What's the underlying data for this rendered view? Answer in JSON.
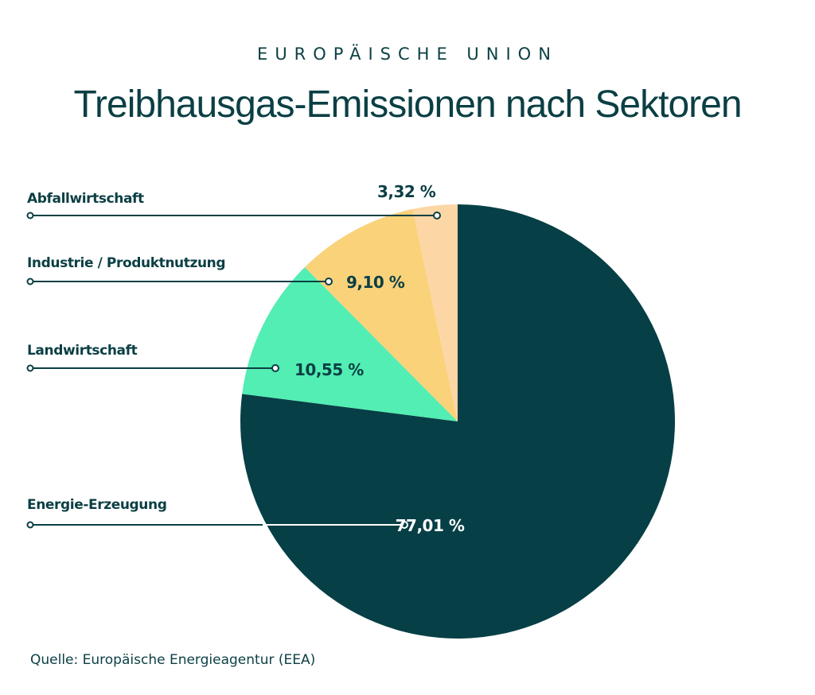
{
  "overtitle": "EUROPÄISCHE UNION",
  "title": "Treibhausgas-Emissionen nach Sektoren",
  "source": "Quelle: Europäische Energieagentur (EEA)",
  "colors": {
    "text": "#0b3f44",
    "energie": "#073f46",
    "landwirtschaft": "#52eeb3",
    "industrie": "#f9d27a",
    "abfall": "#fdd6a6"
  },
  "chart_data": {
    "type": "pie",
    "title": "Treibhausgas-Emissionen nach Sektoren",
    "slices": [
      {
        "name": "Energie-Erzeugung",
        "value": 77.01,
        "label": "77,01 %",
        "color": "#073f46",
        "label_color": "#ffffff"
      },
      {
        "name": "Landwirtschaft",
        "value": 10.55,
        "label": "10,55 %",
        "color": "#52eeb3",
        "label_color": "#0b3f44"
      },
      {
        "name": "Industrie / Produktnutzung",
        "value": 9.1,
        "label": "9,10 %",
        "color": "#f9d27a",
        "label_color": "#0b3f44"
      },
      {
        "name": "Abfallwirtschaft",
        "value": 3.32,
        "label": "3,32 %",
        "color": "#fdd6a6",
        "label_color": "#0b3f44"
      }
    ]
  }
}
